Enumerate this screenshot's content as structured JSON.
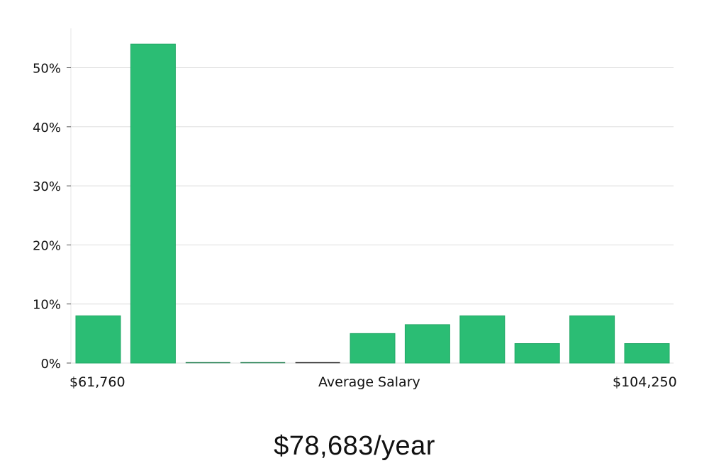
{
  "labels": {
    "min_salary": "$61,760",
    "axis_title": "Average Salary",
    "max_salary": "$104,250"
  },
  "average_salary": "$78,683/year",
  "colors": {
    "bar": "#2bbd74",
    "bar_edge": "#22a866",
    "empty_bar": "#1a7a4a",
    "grid": "#dddddd",
    "axis": "#e5e5e5"
  },
  "chart_data": {
    "type": "bar",
    "title": "",
    "xlabel": "Average Salary",
    "ylabel": "",
    "x_range": [
      "$61,760",
      "$104,250"
    ],
    "yticks": [
      "0%",
      "10%",
      "20%",
      "30%",
      "40%",
      "50%"
    ],
    "ylim": [
      0,
      56
    ],
    "grid": true,
    "values": [
      8,
      54,
      0,
      0,
      0,
      5,
      6.5,
      8,
      3.3,
      8,
      3.3
    ]
  }
}
